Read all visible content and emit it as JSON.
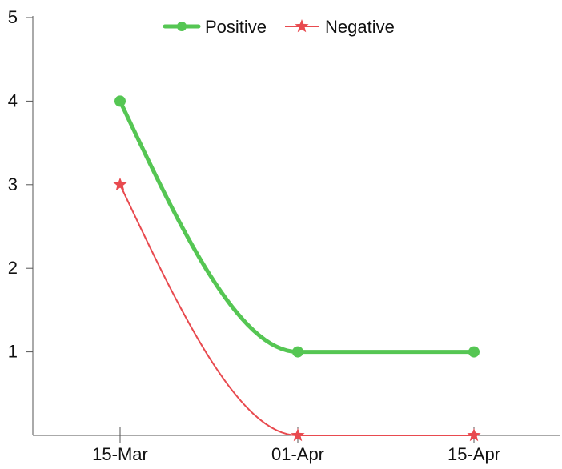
{
  "chart_data": {
    "type": "line",
    "categories": [
      "15-Mar",
      "01-Apr",
      "15-Apr"
    ],
    "ylim": [
      0,
      5
    ],
    "yticks": [
      "1",
      "2",
      "3",
      "4",
      "5"
    ],
    "grid": false,
    "legend_position": "top-center",
    "series": [
      {
        "name": "Positive",
        "values": [
          4,
          1,
          1
        ],
        "color": "#55c653",
        "marker": "circle",
        "smooth": true
      },
      {
        "name": "Negative",
        "values": [
          3,
          0,
          0
        ],
        "color": "#e84a4f",
        "marker": "star",
        "smooth": true
      }
    ]
  }
}
